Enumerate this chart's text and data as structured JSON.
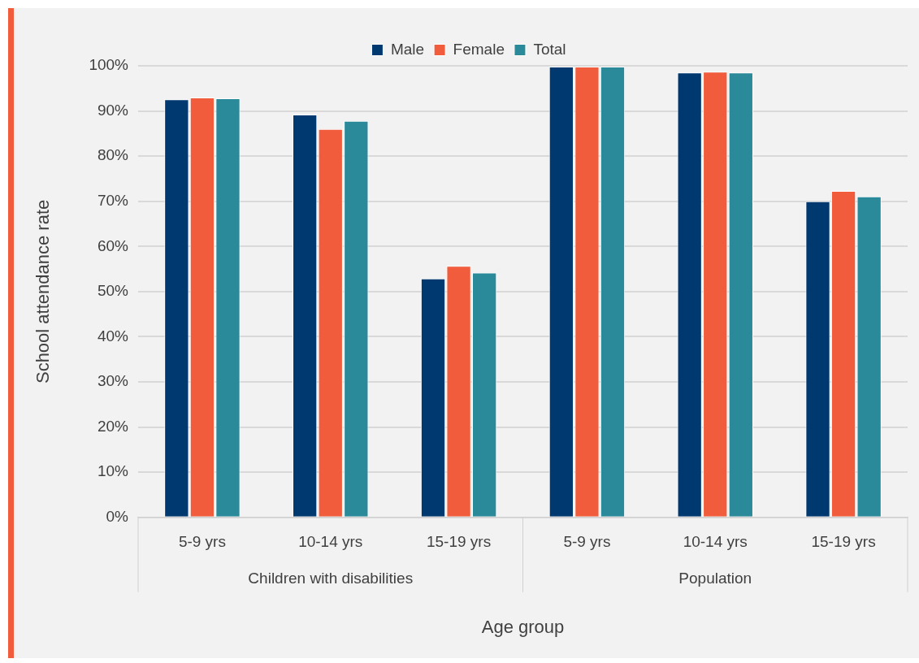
{
  "chart_data": {
    "type": "bar",
    "xlabel": "Age group",
    "ylabel": "School attendance rate",
    "categories": [
      "5-9 yrs",
      "10-14 yrs",
      "15-19 yrs",
      "5-9 yrs",
      "10-14 yrs",
      "15-19 yrs"
    ],
    "annotations": [
      "Children with disabilities",
      "Population"
    ],
    "series": [
      {
        "name": "Male",
        "color": "#003870",
        "values": [
          92.6,
          89.2,
          52.9,
          99.8,
          98.5,
          70.0
        ]
      },
      {
        "name": "Female",
        "color": "#f15d3c",
        "values": [
          93.0,
          86.0,
          55.7,
          99.8,
          98.7,
          72.3
        ]
      },
      {
        "name": "Total",
        "color": "#2a8a9a",
        "values": [
          92.8,
          87.8,
          54.2,
          99.8,
          98.5,
          71.1
        ]
      }
    ],
    "ylim": [
      0,
      100
    ],
    "yticks": [
      {
        "value": 0,
        "label": "0%"
      },
      {
        "value": 10,
        "label": "10%"
      },
      {
        "value": 20,
        "label": "20%"
      },
      {
        "value": 30,
        "label": "30%"
      },
      {
        "value": 40,
        "label": "40%"
      },
      {
        "value": 50,
        "label": "50%"
      },
      {
        "value": 60,
        "label": "60%"
      },
      {
        "value": 70,
        "label": "70%"
      },
      {
        "value": 80,
        "label": "80%"
      },
      {
        "value": 90,
        "label": "90%"
      },
      {
        "value": 100,
        "label": "100%"
      }
    ],
    "grid": "y",
    "legend": "top"
  }
}
